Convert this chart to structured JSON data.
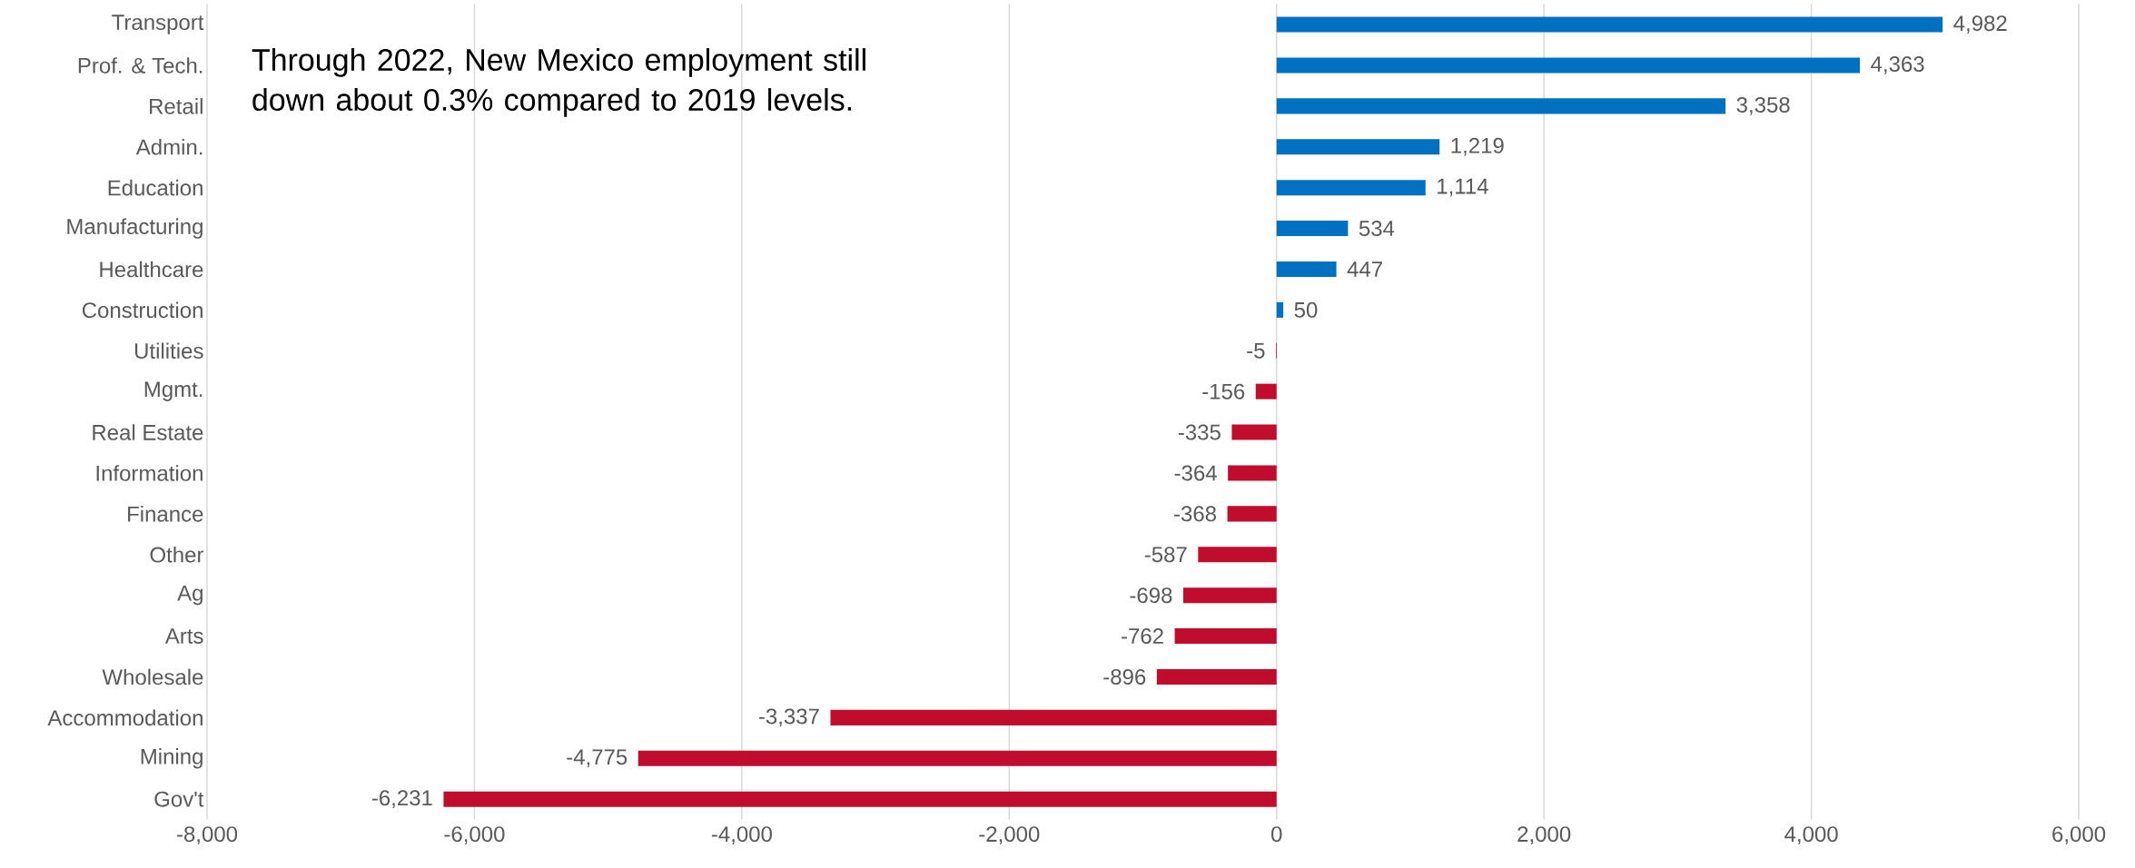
{
  "chart_data": {
    "type": "bar",
    "orientation": "horizontal",
    "categories": [
      "Transport",
      "Prof. & Tech.",
      "Retail",
      "Admin.",
      "Education",
      "Manufacturing",
      "Healthcare",
      "Construction",
      "Utilities",
      "Mgmt.",
      "Real Estate",
      "Information",
      "Finance",
      "Other",
      "Ag",
      "Arts",
      "Wholesale",
      "Accommodation",
      "Mining",
      "Gov't"
    ],
    "values": [
      4982,
      4363,
      3358,
      1219,
      1114,
      534,
      447,
      50,
      -5,
      -156,
      -335,
      -364,
      -368,
      -587,
      -698,
      -762,
      -896,
      -3337,
      -4775,
      -6231
    ],
    "value_labels": [
      "4,982",
      "4,363",
      "3,358",
      "1,219",
      "1,114",
      "534",
      "447",
      "50",
      "-5",
      "-156",
      "-335",
      "-364",
      "-368",
      "-587",
      "-698",
      "-762",
      "-896",
      "-3,337",
      "-4,775",
      "-6,231"
    ],
    "colors": [
      "#0070c0",
      "#0070c0",
      "#0070c0",
      "#0070c0",
      "#0070c0",
      "#0070c0",
      "#0070c0",
      "#0070c0",
      "#c00d2e",
      "#c00d2e",
      "#c00d2e",
      "#c00d2e",
      "#c00d2e",
      "#c00d2e",
      "#c00d2e",
      "#c00d2e",
      "#c00d2e",
      "#c00d2e",
      "#c00d2e",
      "#c00d2e"
    ],
    "xlim": [
      -8000,
      6000
    ],
    "xticks": [
      {
        "value": -8000,
        "label": "-8,000"
      },
      {
        "value": -6000,
        "label": "-6,000"
      },
      {
        "value": -4000,
        "label": "-4,000"
      },
      {
        "value": -2000,
        "label": "-2,000"
      },
      0,
      {
        "value": 2000,
        "label": "2,000"
      },
      {
        "value": 4000,
        "label": "4,000"
      },
      {
        "value": 6000,
        "label": "6,000"
      }
    ],
    "grid": "x",
    "annotations": [
      "Through 2022, New Mexico employment still down about 0.3% compared to 2019 levels."
    ]
  }
}
